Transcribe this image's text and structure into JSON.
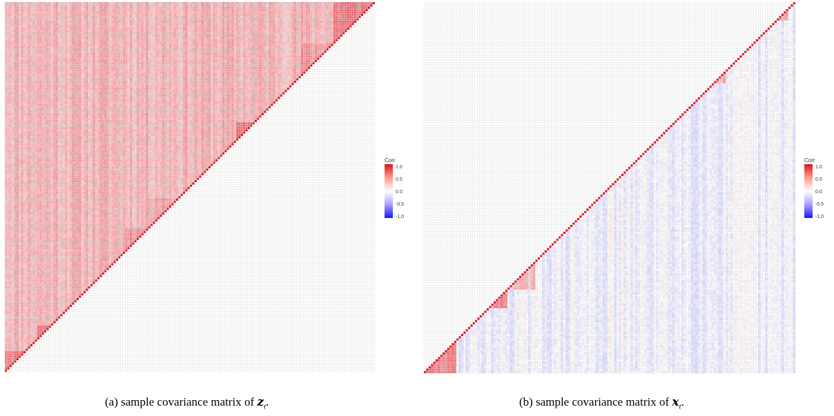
{
  "chart_data": [
    {
      "type": "heatmap",
      "panel": "a",
      "caption": {
        "prefix": "(a) sample covariance matrix of",
        "var": "z",
        "sub": "t",
        "suffix": "."
      },
      "legend": {
        "title": "Corr",
        "ticks": [
          "1.0",
          "0.5",
          "0.0",
          "-0.5",
          "-1.0"
        ],
        "placement": "right"
      },
      "colorscale": {
        "high": "#e0141e",
        "mid": "#ffffff",
        "low": "#1a16ff"
      },
      "grid": true,
      "triangle": "upper-left",
      "dimension": 160,
      "diagonal_value": 1.0,
      "background_mean_corr": 0.35,
      "blocks": [
        {
          "start": 0,
          "end": 9,
          "corr": 0.6
        },
        {
          "start": 14,
          "end": 20,
          "corr": 0.6
        },
        {
          "start": 52,
          "end": 62,
          "corr": 0.5
        },
        {
          "start": 62,
          "end": 75,
          "corr": 0.45
        },
        {
          "start": 100,
          "end": 108,
          "corr": 0.65
        },
        {
          "start": 128,
          "end": 142,
          "corr": 0.45
        },
        {
          "start": 142,
          "end": 160,
          "corr": 0.6
        }
      ]
    },
    {
      "type": "heatmap",
      "panel": "b",
      "caption": {
        "prefix": "(b) sample covariance matrix of",
        "var": "x",
        "sub": "t",
        "suffix": "."
      },
      "legend": {
        "title": "Corr",
        "ticks": [
          "1.0",
          "0.5",
          "0.0",
          "-0.5",
          "-1.0"
        ],
        "placement": "right"
      },
      "colorscale": {
        "high": "#e0141e",
        "mid": "#ffffff",
        "low": "#1a16ff"
      },
      "grid": true,
      "triangle": "lower-right",
      "dimension": 160,
      "diagonal_value": 1.0,
      "background_mean_corr": -0.05,
      "blocks": [
        {
          "start": 0,
          "end": 14,
          "corr": 0.55
        },
        {
          "start": 28,
          "end": 36,
          "corr": 0.55
        },
        {
          "start": 36,
          "end": 48,
          "corr": 0.3
        },
        {
          "start": 125,
          "end": 130,
          "corr": 0.4
        },
        {
          "start": 152,
          "end": 157,
          "corr": 0.4
        }
      ]
    }
  ]
}
